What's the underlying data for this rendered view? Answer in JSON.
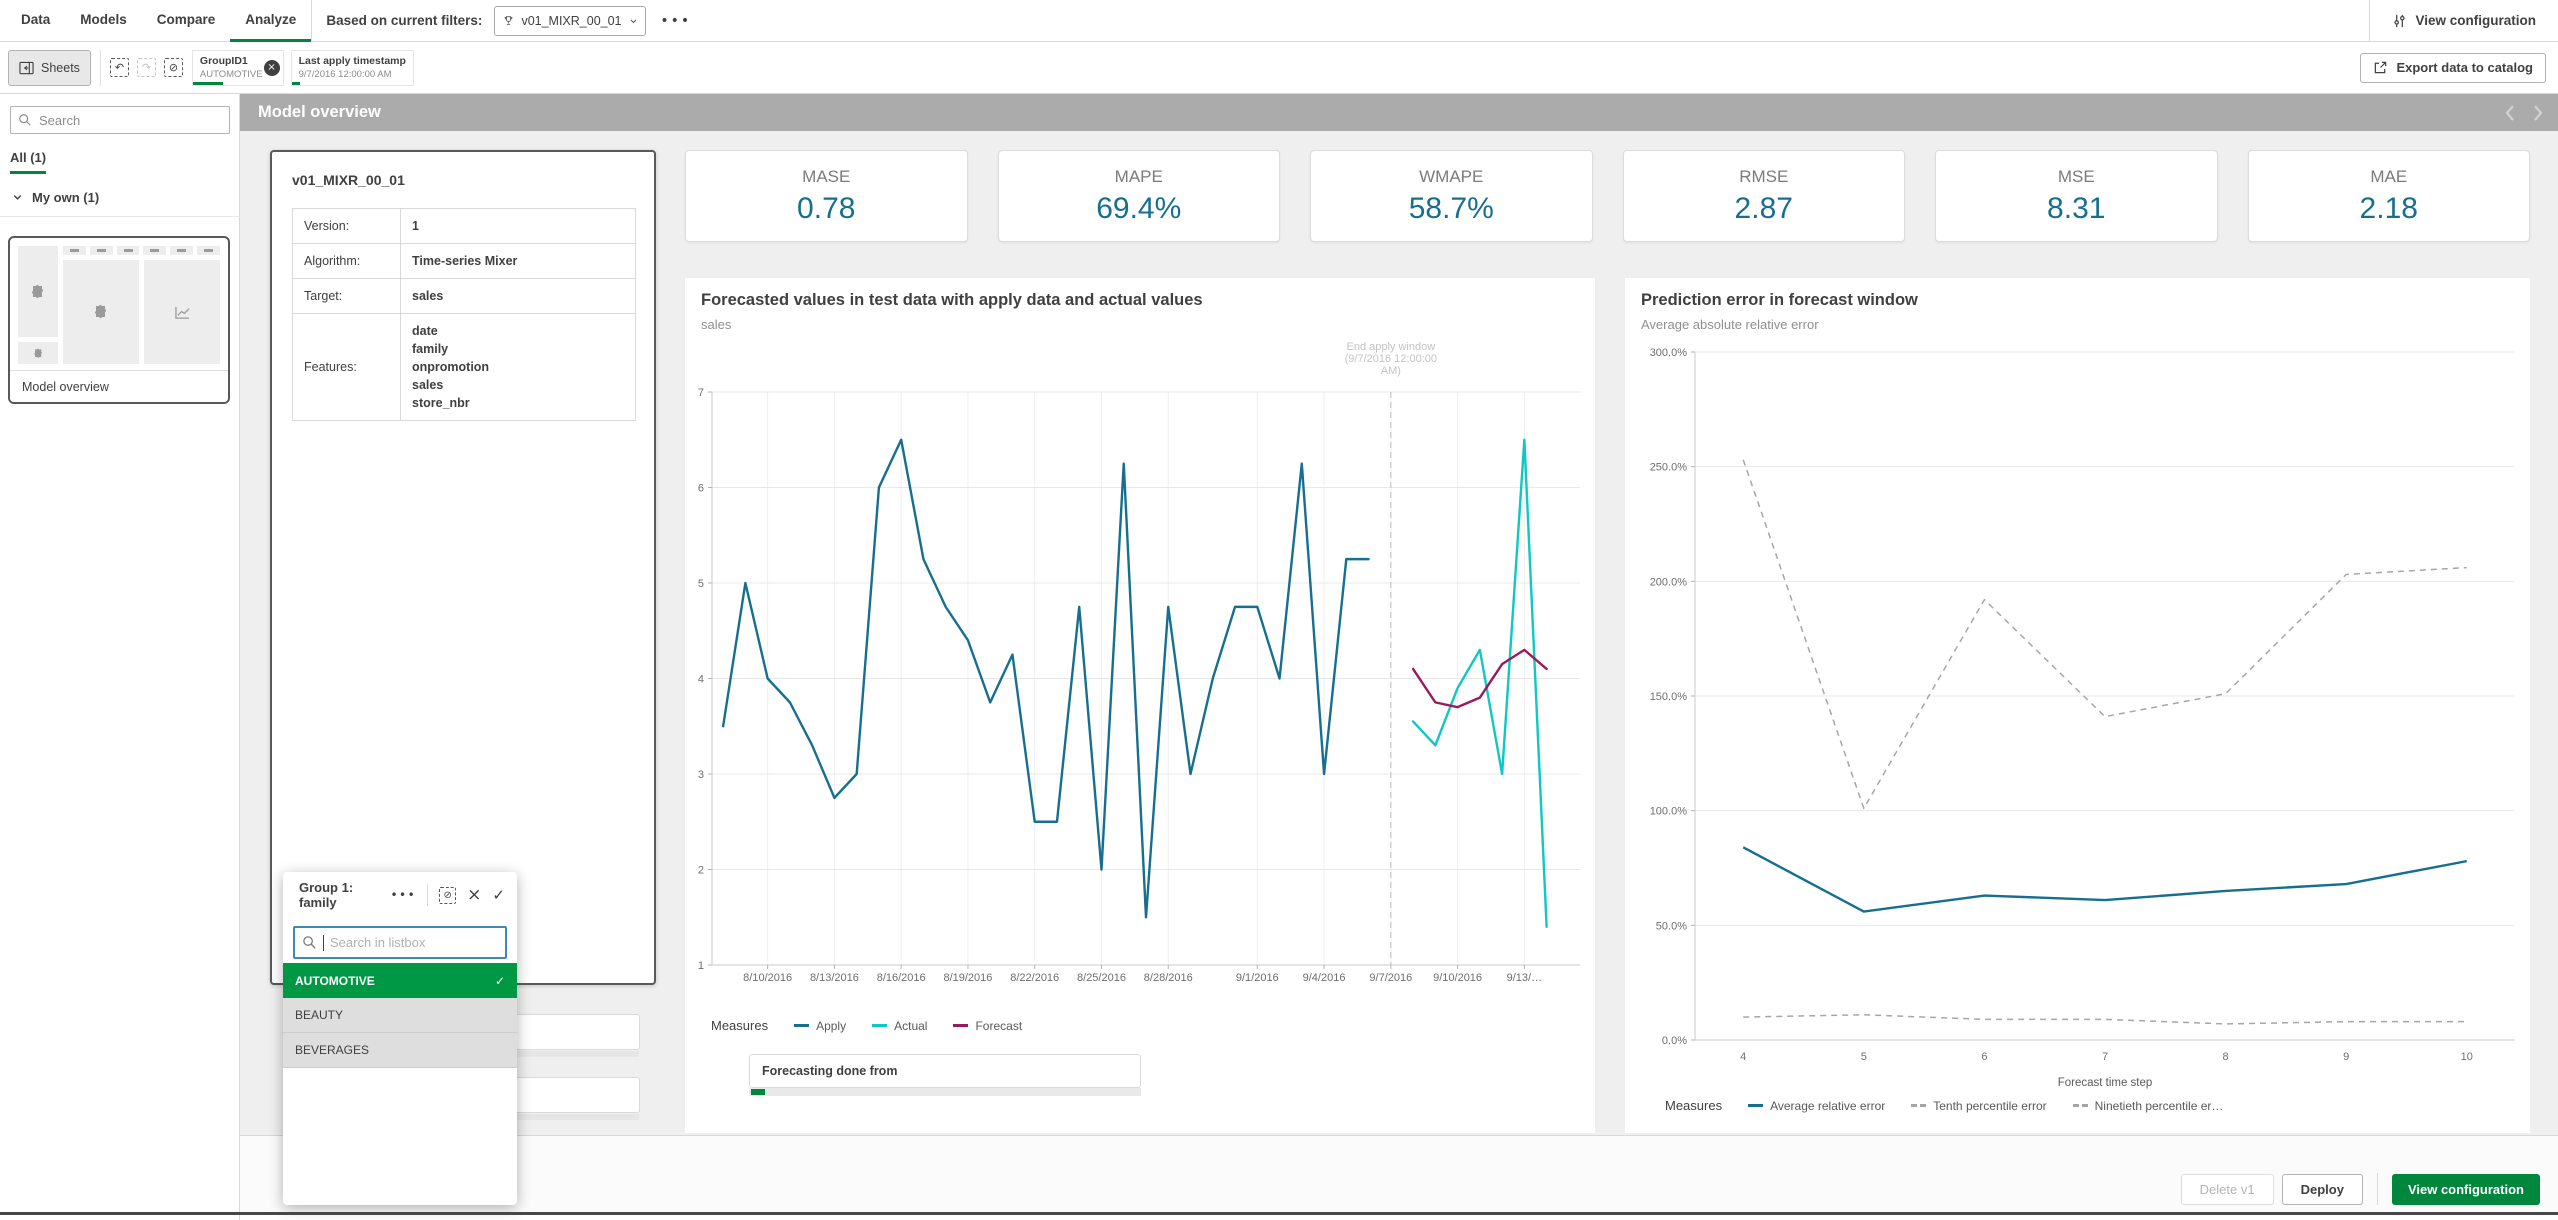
{
  "colors": {
    "green": "#00873d",
    "selection_green": "#009845",
    "teal": "#176f8f",
    "cyan": "#0fc7c3",
    "maroon": "#9a1b5d",
    "header_gray": "#ababab"
  },
  "icons": {
    "more": "•••",
    "undo": "↶",
    "redo": "↷",
    "clear": "⊘",
    "close": "×",
    "check": "✓",
    "prev": "‹",
    "next": "›"
  },
  "topnav": {
    "tabs": [
      "Data",
      "Models",
      "Compare",
      "Analyze"
    ],
    "active_tab": "Analyze",
    "filters_label": "Based on current filters:",
    "model_dropdown_value": "v01_MIXR_00_01",
    "view_configuration_label": "View configuration"
  },
  "toolbar": {
    "sheets_label": "Sheets",
    "export_label": "Export data to catalog",
    "chips": [
      {
        "title": "GroupID1",
        "value": "AUTOMOTIVE",
        "removable": true,
        "underline_pct": 34
      },
      {
        "title": "Last apply timestamp",
        "value": "9/7/2016 12:00:00 AM",
        "removable": false,
        "underline_pct": 7
      }
    ]
  },
  "sidebar": {
    "search_placeholder": "Search",
    "tab_all": "All (1)",
    "group_label": "My own (1)",
    "thumbnail_label": "Model overview"
  },
  "sheet_header": {
    "title": "Model overview"
  },
  "model_card": {
    "name": "v01_MIXR_00_01",
    "rows": [
      {
        "label": "Version:",
        "values": [
          "1"
        ]
      },
      {
        "label": "Algorithm:",
        "values": [
          "Time-series Mixer"
        ]
      },
      {
        "label": "Target:",
        "values": [
          "sales"
        ]
      },
      {
        "label": "Features:",
        "values": [
          "date",
          "family",
          "onpromotion",
          "sales",
          "store_nbr"
        ]
      }
    ]
  },
  "kpis": [
    {
      "label": "MASE",
      "value": "0.78"
    },
    {
      "label": "MAPE",
      "value": "69.4%"
    },
    {
      "label": "WMAPE",
      "value": "58.7%"
    },
    {
      "label": "RMSE",
      "value": "2.87"
    },
    {
      "label": "MSE",
      "value": "8.31"
    },
    {
      "label": "MAE",
      "value": "2.18"
    }
  ],
  "popup": {
    "title": "Group 1: family",
    "search_placeholder": "Search in listbox",
    "items": [
      {
        "label": "AUTOMOTIVE",
        "selected": true
      },
      {
        "label": "BEAUTY",
        "selected": false
      },
      {
        "label": "BEVERAGES",
        "selected": false
      }
    ]
  },
  "footer": {
    "delete_label": "Delete v1",
    "deploy_label": "Deploy",
    "view_configuration_label": "View configuration"
  },
  "chart_data": [
    {
      "type": "line",
      "title": "Forecasted values in test data with apply data and actual values",
      "subtitle": "sales",
      "legend_title": "Measures",
      "ylim": [
        1,
        7
      ],
      "yticks": [
        7,
        6,
        5,
        4,
        3,
        2,
        1
      ],
      "x_domain_days": 39,
      "xticks": [
        {
          "pos": 2,
          "label": "8/10/2016"
        },
        {
          "pos": 5,
          "label": "8/13/2016"
        },
        {
          "pos": 8,
          "label": "8/16/2016"
        },
        {
          "pos": 11,
          "label": "8/19/2016"
        },
        {
          "pos": 14,
          "label": "8/22/2016"
        },
        {
          "pos": 17,
          "label": "8/25/2016"
        },
        {
          "pos": 20,
          "label": "8/28/2016"
        },
        {
          "pos": 24,
          "label": "9/1/2016"
        },
        {
          "pos": 27,
          "label": "9/4/2016"
        },
        {
          "pos": 30,
          "label": "9/7/2016"
        },
        {
          "pos": 33,
          "label": "9/10/2016"
        },
        {
          "pos": 36,
          "label": "9/13/…"
        }
      ],
      "annotation": {
        "pos": 30,
        "lines": [
          "End apply window",
          "(9/7/2016 12:00:00",
          "AM)"
        ]
      },
      "series": [
        {
          "name": "Apply",
          "color": "#176f8f",
          "dash": false,
          "start": 0,
          "values": [
            3.5,
            5.0,
            4.0,
            3.75,
            3.3,
            2.75,
            3.0,
            6.0,
            6.5,
            5.25,
            4.75,
            4.4,
            3.75,
            4.25,
            2.5,
            2.5,
            4.75,
            2.0,
            6.25,
            1.5,
            4.75,
            3.0,
            4.0,
            4.75,
            4.75,
            4.0,
            6.25,
            3.0,
            5.25,
            5.25
          ]
        },
        {
          "name": "Actual",
          "color": "#0fc7c3",
          "dash": false,
          "start": 31,
          "values": [
            3.55,
            3.3,
            3.9,
            4.3,
            3.0,
            6.5,
            1.4
          ]
        },
        {
          "name": "Forecast",
          "color": "#9a1b5d",
          "dash": false,
          "start": 31,
          "values": [
            4.1,
            3.75,
            3.7,
            3.8,
            4.15,
            4.3,
            4.1
          ]
        }
      ],
      "footer_box_label": "Forecasting done from"
    },
    {
      "type": "line",
      "title": "Prediction error in forecast window",
      "subtitle": "Average absolute relative error",
      "legend_title": "Measures",
      "xlabel": "Forecast time step",
      "ylim": [
        0,
        300
      ],
      "yticks": [
        {
          "v": 300,
          "label": "300.0%"
        },
        {
          "v": 250,
          "label": "250.0%"
        },
        {
          "v": 200,
          "label": "200.0%"
        },
        {
          "v": 150,
          "label": "150.0%"
        },
        {
          "v": 100,
          "label": "100.0%"
        },
        {
          "v": 50,
          "label": "50.0%"
        },
        {
          "v": 0,
          "label": "0.0%"
        }
      ],
      "x": [
        4,
        5,
        6,
        7,
        8,
        9,
        10
      ],
      "xlim": [
        3.6,
        10.4
      ],
      "series": [
        {
          "name": "Average relative error",
          "color": "#176f8f",
          "dash": false,
          "values": [
            84,
            56,
            63,
            61,
            65,
            68,
            78
          ]
        },
        {
          "name": "Tenth percentile error",
          "color": "#a6a6a6",
          "dash": true,
          "values": [
            10,
            11,
            9,
            9,
            7,
            8,
            8
          ]
        },
        {
          "name": "Ninetieth percentile er…",
          "color": "#a6a6a6",
          "dash": true,
          "values": [
            253,
            101,
            192,
            141,
            151,
            203,
            206
          ]
        }
      ]
    }
  ]
}
